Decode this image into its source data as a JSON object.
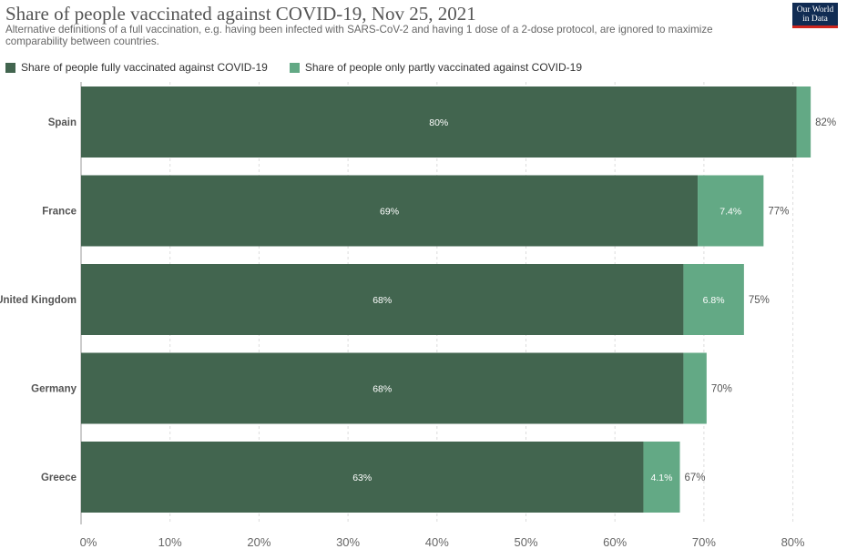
{
  "title": "Share of people vaccinated against COVID-19, Nov 25, 2021",
  "subtitle": "Alternative definitions of a full vaccination, e.g. having been infected with SARS-CoV-2 and having 1 dose of a 2-dose protocol, are ignored to maximize comparability between countries.",
  "logo": {
    "line1": "Our World",
    "line2": "in Data"
  },
  "colors": {
    "full": "#42654f",
    "partial": "#63a985",
    "grid": "#dddddd"
  },
  "chart_data": {
    "type": "bar",
    "orientation": "horizontal",
    "stacked": true,
    "categories": [
      "Spain",
      "France",
      "United Kingdom",
      "Germany",
      "Greece"
    ],
    "series": [
      {
        "name": "Share of people fully vaccinated against COVID-19",
        "values": [
          80.4,
          69.3,
          67.7,
          67.7,
          63.2
        ],
        "labels": [
          "80%",
          "69%",
          "68%",
          "68%",
          "63%"
        ]
      },
      {
        "name": "Share of people only partly vaccinated against COVID-19",
        "values": [
          1.6,
          7.4,
          6.8,
          2.6,
          4.1
        ],
        "labels": [
          "",
          "7.4%",
          "6.8%",
          "",
          "4.1%"
        ]
      }
    ],
    "totals": [
      "82%",
      "77%",
      "75%",
      "70%",
      "67%"
    ],
    "xlim": [
      0,
      82
    ],
    "xticks": [
      0,
      10,
      20,
      30,
      40,
      50,
      60,
      70,
      80
    ],
    "xtick_labels": [
      "0%",
      "10%",
      "20%",
      "30%",
      "40%",
      "50%",
      "60%",
      "70%",
      "80%"
    ],
    "legend_position": "top-left",
    "grid": true
  }
}
